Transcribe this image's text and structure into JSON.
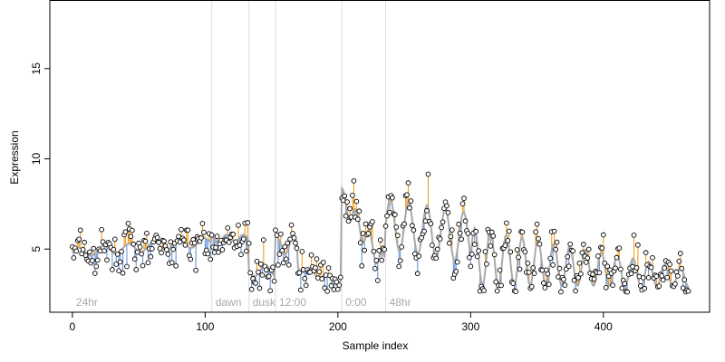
{
  "chart_data": {
    "type": "line",
    "title": "",
    "xlabel": "Sample index",
    "ylabel": "Expression",
    "xlim": [
      -17,
      480
    ],
    "ylim": [
      1.5,
      18.8
    ],
    "xticks": [
      0,
      100,
      200,
      300,
      400
    ],
    "yticks": [
      5,
      10,
      15
    ],
    "grid": false,
    "colors": {
      "fitted_line": "#a9a9a9",
      "above_residual": "#f0a020",
      "below_residual": "#6a96d8",
      "point_fill": "#ffffff",
      "point_stroke": "#000000",
      "separator": "#dcdcdc",
      "phase_label": "#a8a8a8"
    },
    "phases": [
      {
        "label": "24hr",
        "start": 0
      },
      {
        "label": "dawn",
        "start": 105
      },
      {
        "label": "dusk",
        "start": 133
      },
      {
        "label": "12:00",
        "start": 153
      },
      {
        "label": "0:00",
        "start": 203
      },
      {
        "label": "48hr",
        "start": 236
      }
    ],
    "segment_means": [
      {
        "from": 0,
        "to": 104,
        "mean": 5.0
      },
      {
        "from": 105,
        "to": 132,
        "mean": 5.7
      },
      {
        "from": 133,
        "to": 152,
        "mean": 3.8
      },
      {
        "from": 153,
        "to": 202,
        "mean": 4.2
      },
      {
        "from": 203,
        "to": 235,
        "mean": 5.8
      },
      {
        "from": 236,
        "to": 300,
        "mean": 5.7
      },
      {
        "from": 301,
        "to": 460,
        "mean": 4.4
      }
    ],
    "series": [
      {
        "name": "",
        "description": "observed expression with fitted mean curve",
        "x_start": 0,
        "x_end": 464
      }
    ]
  }
}
